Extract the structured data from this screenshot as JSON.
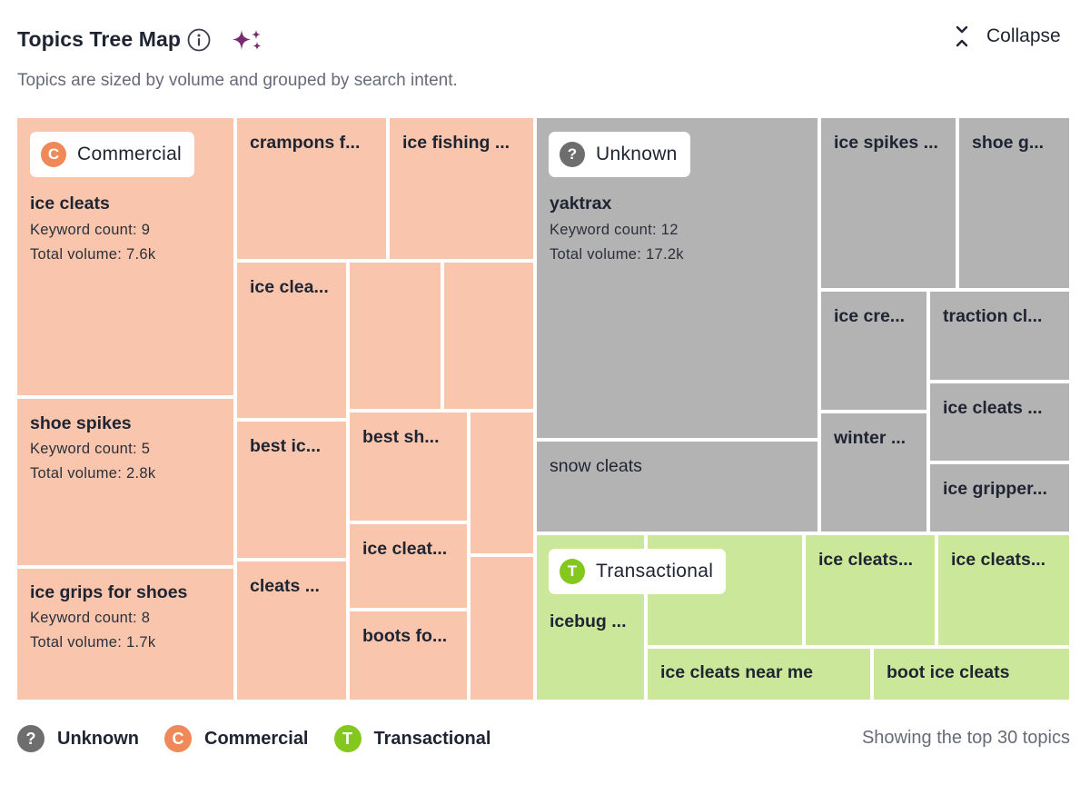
{
  "header": {
    "title": "Topics Tree Map",
    "subtitle": "Topics are sized by volume and grouped by search intent.",
    "collapse_label": "Collapse"
  },
  "colors": {
    "commercial_fill": "#f9c6ad",
    "unknown_fill": "#b3b3b3",
    "transactional_fill": "#cae79a",
    "commercial_icon": "#f0895a",
    "unknown_icon": "#6e6e6e",
    "transactional_icon": "#84c71f",
    "sparkle": "#7a2a6e"
  },
  "groups": {
    "commercial": {
      "label": "Commercial",
      "letter": "C"
    },
    "unknown": {
      "label": "Unknown",
      "letter": "?"
    },
    "transactional": {
      "label": "Transactional",
      "letter": "T"
    }
  },
  "cells": {
    "ice_cleats": {
      "title": "ice cleats",
      "keyword_count": "Keyword count: 9",
      "total_volume": "Total volume: 7.6k"
    },
    "shoe_spikes": {
      "title": "shoe spikes",
      "keyword_count": "Keyword count: 5",
      "total_volume": "Total volume: 2.8k"
    },
    "ice_grips": {
      "title": "ice grips for shoes",
      "keyword_count": "Keyword count: 8",
      "total_volume": "Total volume: 1.7k"
    },
    "crampons": {
      "title": "crampons f..."
    },
    "ice_fishing": {
      "title": "ice fishing ..."
    },
    "ice_clea": {
      "title": "ice clea..."
    },
    "best_ic": {
      "title": "best ic..."
    },
    "cleats": {
      "title": "cleats ..."
    },
    "best_sh": {
      "title": "best sh..."
    },
    "ice_cleat_dots": {
      "title": "ice cleat..."
    },
    "boots_fo": {
      "title": "boots fo..."
    },
    "yaktrax": {
      "title": "yaktrax",
      "keyword_count": "Keyword count: 12",
      "total_volume": "Total volume: 17.2k"
    },
    "snow_cleats": {
      "title": "snow cleats"
    },
    "ice_spikes": {
      "title": "ice spikes ..."
    },
    "shoe_g": {
      "title": "shoe g..."
    },
    "ice_cre": {
      "title": "ice cre..."
    },
    "traction_cl": {
      "title": "traction cl..."
    },
    "ice_cleats_space": {
      "title": "ice cleats ..."
    },
    "winter": {
      "title": "winter ..."
    },
    "ice_gripper": {
      "title": "ice gripper..."
    },
    "icebug": {
      "title": "icebug ..."
    },
    "ice_cleats_t1": {
      "title": "ice cleats..."
    },
    "ice_cleats_t2": {
      "title": "ice cleats..."
    },
    "ice_cleats_near_me": {
      "title": "ice cleats near me"
    },
    "boot_ice_cleats": {
      "title": "boot ice cleats"
    }
  },
  "legend": [
    {
      "label": "Unknown",
      "letter": "?"
    },
    {
      "label": "Commercial",
      "letter": "C"
    },
    {
      "label": "Transactional",
      "letter": "T"
    }
  ],
  "footnote": "Showing the top 30 topics"
}
